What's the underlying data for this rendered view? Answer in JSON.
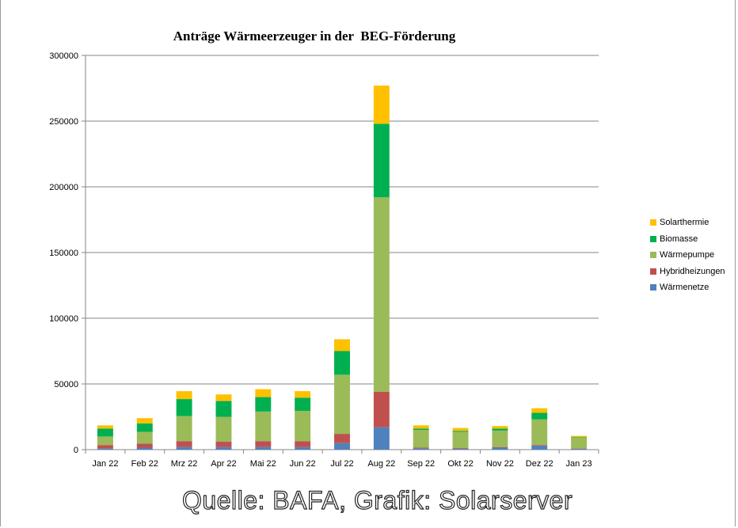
{
  "chart_data": {
    "type": "bar",
    "stacked": true,
    "title": "Anträge Wärmeerzeuger in der  BEG-Förderung",
    "xlabel": "",
    "ylabel": "",
    "ylim": [
      0,
      300000
    ],
    "yticks": [
      "0",
      "50000",
      "100000",
      "150000",
      "200000",
      "250000",
      "300000"
    ],
    "grid": true,
    "legend_position": "right",
    "categories": [
      "Jan 22",
      "Feb 22",
      "Mrz 22",
      "Apr 22",
      "Mai 22",
      "Jun 22",
      "Jul 22",
      "Aug 22",
      "Sep 22",
      "Okt 22",
      "Nov 22",
      "Dez 22",
      "Jan 23"
    ],
    "series": [
      {
        "name": "Wärmenetze",
        "color": "#4f81bd",
        "values": [
          1000,
          1500,
          2000,
          2000,
          2000,
          2000,
          5000,
          17000,
          1000,
          800,
          1500,
          3000,
          700
        ]
      },
      {
        "name": "Hybridheizungen",
        "color": "#c0504d",
        "values": [
          2500,
          3000,
          4500,
          4000,
          4500,
          4500,
          7000,
          27000,
          500,
          400,
          500,
          500,
          300
        ]
      },
      {
        "name": "Wärmepumpe",
        "color": "#9bbb59",
        "values": [
          6500,
          9000,
          19000,
          19000,
          22500,
          23000,
          45000,
          148000,
          13500,
          12300,
          12500,
          19500,
          8000
        ]
      },
      {
        "name": "Biomasse",
        "color": "#00b050",
        "values": [
          6000,
          6500,
          13000,
          12000,
          11000,
          10000,
          18000,
          56000,
          1000,
          800,
          1500,
          5000,
          500
        ]
      },
      {
        "name": "Solarthermie",
        "color": "#ffc000",
        "values": [
          2500,
          4000,
          6000,
          5000,
          6000,
          5000,
          9000,
          29000,
          2500,
          2200,
          2000,
          3500,
          1000
        ]
      }
    ]
  },
  "legend_items": [
    "Solarthermie",
    "Biomasse",
    "Wärmepumpe",
    "Hybridheizungen",
    "Wärmenetze"
  ],
  "source": "Quelle: BAFA, Grafik: Solarserver"
}
